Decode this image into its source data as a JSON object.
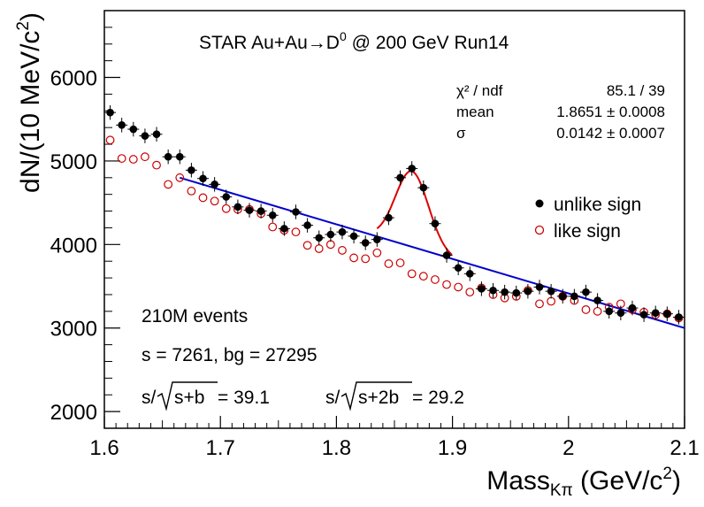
{
  "chart_data": {
    "type": "scatter",
    "title": "STAR Au+Au→D⁰ @ 200 GeV Run14",
    "title_parts": {
      "pre": "STAR Au+Au",
      "arrow": "→",
      "d": "D",
      "sup": "0",
      "post": " @ 200 GeV Run14"
    },
    "xlabel": "Massₖπ (GeV/c²)",
    "xlabel_parts": {
      "main": "Mass",
      "sub": "Kπ",
      "unit": " (GeV/c",
      "sup": "2",
      "close": ")"
    },
    "ylabel": "dN/(10 MeV/c²)",
    "ylabel_parts": {
      "main": "dN/(10 MeV/c",
      "sup": "2",
      "close": ")"
    },
    "xlim": [
      1.6,
      2.1
    ],
    "ylim": [
      1800,
      6800
    ],
    "x_ticks": [
      "1.6",
      "1.7",
      "1.8",
      "1.9",
      "2",
      "2.1"
    ],
    "x_tick_values": [
      1.6,
      1.7,
      1.8,
      1.9,
      2.0,
      2.1
    ],
    "y_ticks": [
      "2000",
      "3000",
      "4000",
      "5000",
      "6000"
    ],
    "y_tick_values": [
      2000,
      3000,
      4000,
      5000,
      6000
    ],
    "grid": false,
    "legend_placement": "right",
    "series": [
      {
        "name": "unlike sign",
        "marker": "filled-circle",
        "color": "#000000",
        "x": [
          1.605,
          1.615,
          1.625,
          1.635,
          1.645,
          1.655,
          1.665,
          1.675,
          1.685,
          1.695,
          1.705,
          1.715,
          1.725,
          1.735,
          1.745,
          1.755,
          1.765,
          1.775,
          1.785,
          1.795,
          1.805,
          1.815,
          1.825,
          1.835,
          1.845,
          1.855,
          1.865,
          1.875,
          1.885,
          1.895,
          1.905,
          1.915,
          1.925,
          1.935,
          1.945,
          1.955,
          1.965,
          1.975,
          1.985,
          1.995,
          2.005,
          2.015,
          2.025,
          2.035,
          2.045,
          2.055,
          2.065,
          2.075,
          2.085,
          2.095
        ],
        "y": [
          5580,
          5430,
          5380,
          5300,
          5320,
          5050,
          5050,
          4890,
          4790,
          4720,
          4570,
          4450,
          4410,
          4400,
          4350,
          4190,
          4390,
          4230,
          4080,
          4120,
          4150,
          4100,
          4020,
          4060,
          4320,
          4800,
          4910,
          4680,
          4250,
          3870,
          3720,
          3650,
          3470,
          3450,
          3430,
          3420,
          3440,
          3490,
          3440,
          3380,
          3380,
          3430,
          3330,
          3200,
          3180,
          3240,
          3160,
          3180,
          3170,
          3130
        ],
        "yerr": 45
      },
      {
        "name": "like sign",
        "marker": "open-circle",
        "color": "#cc0000",
        "x": [
          1.605,
          1.615,
          1.625,
          1.635,
          1.645,
          1.655,
          1.665,
          1.675,
          1.685,
          1.695,
          1.705,
          1.715,
          1.725,
          1.735,
          1.745,
          1.755,
          1.765,
          1.775,
          1.785,
          1.795,
          1.805,
          1.815,
          1.825,
          1.835,
          1.845,
          1.855,
          1.865,
          1.875,
          1.885,
          1.895,
          1.905,
          1.915,
          1.925,
          1.935,
          1.945,
          1.955,
          1.965,
          1.975,
          1.985,
          1.995,
          2.005,
          2.015,
          2.025,
          2.035,
          2.045,
          2.055,
          2.065,
          2.075,
          2.085,
          2.095
        ],
        "y": [
          5250,
          5030,
          5020,
          5050,
          4950,
          4720,
          4800,
          4640,
          4560,
          4520,
          4430,
          4420,
          4420,
          4370,
          4210,
          4170,
          4150,
          3990,
          3950,
          4000,
          3930,
          3840,
          3830,
          3900,
          3770,
          3780,
          3650,
          3620,
          3580,
          3520,
          3490,
          3430,
          3480,
          3400,
          3360,
          3380,
          3450,
          3290,
          3320,
          3380,
          3330,
          3220,
          3200,
          3250,
          3290,
          3220,
          3190,
          3160,
          3170,
          3120
        ]
      }
    ],
    "fits": {
      "background_line": {
        "color": "#0000cc",
        "x": [
          1.665,
          2.1
        ],
        "y": [
          4800,
          3000
        ]
      },
      "peak": {
        "color": "#dd0000",
        "x_range": [
          1.835,
          1.9
        ],
        "mean": 1.8651,
        "sigma": 0.0142,
        "amplitude": 905
      }
    },
    "stats_box": {
      "rows": [
        {
          "label": "χ² / ndf",
          "value": "85.1 / 39"
        },
        {
          "label": "mean",
          "value": "1.8651 ± 0.0008"
        },
        {
          "label": "σ",
          "value": "0.0142 ± 0.0007"
        }
      ]
    },
    "annotations": {
      "events": "210M events",
      "signal_bg": "s = 7261,  bg = 27295",
      "sig1_pre": "s/",
      "sig1_rad": "s+b",
      "sig1_val": " = 39.1",
      "sig2_pre": "s/",
      "sig2_rad": "s+2b",
      "sig2_val": " = 29.2"
    }
  }
}
